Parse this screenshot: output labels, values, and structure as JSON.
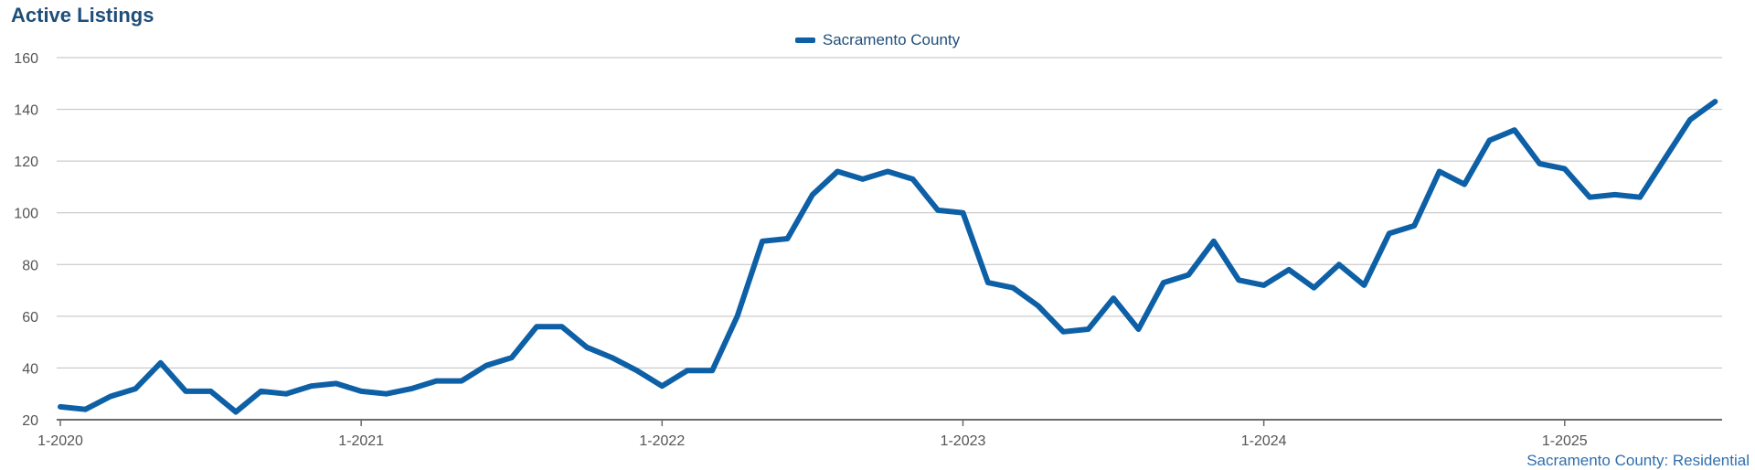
{
  "colors": {
    "series": "#0d5fa6",
    "title": "#1f4e79",
    "grid": "#bfbfbf",
    "axis": "#6b6b6b"
  },
  "chart_data": {
    "type": "line",
    "title": "Active Listings",
    "legend": "top-center",
    "grid": true,
    "ylim": [
      20,
      160
    ],
    "yticks": [
      20,
      40,
      60,
      80,
      100,
      120,
      140,
      160
    ],
    "xticks": [
      "1-2020",
      "1-2021",
      "1-2022",
      "1-2023",
      "1-2024",
      "1-2025"
    ],
    "x": [
      "2020-01",
      "2020-02",
      "2020-03",
      "2020-04",
      "2020-05",
      "2020-06",
      "2020-07",
      "2020-08",
      "2020-09",
      "2020-10",
      "2020-11",
      "2020-12",
      "2021-01",
      "2021-02",
      "2021-03",
      "2021-04",
      "2021-05",
      "2021-06",
      "2021-07",
      "2021-08",
      "2021-09",
      "2021-10",
      "2021-11",
      "2021-12",
      "2022-01",
      "2022-02",
      "2022-03",
      "2022-04",
      "2022-05",
      "2022-06",
      "2022-07",
      "2022-08",
      "2022-09",
      "2022-10",
      "2022-11",
      "2022-12",
      "2023-01",
      "2023-02",
      "2023-03",
      "2023-04",
      "2023-05",
      "2023-06",
      "2023-07",
      "2023-08",
      "2023-09",
      "2023-10",
      "2023-11",
      "2023-12",
      "2024-01",
      "2024-02",
      "2024-03",
      "2024-04",
      "2024-05",
      "2024-06",
      "2024-07",
      "2024-08",
      "2024-09",
      "2024-10",
      "2024-11",
      "2024-12",
      "2025-01",
      "2025-02",
      "2025-03",
      "2025-04",
      "2025-05",
      "2025-06",
      "2025-07"
    ],
    "series": [
      {
        "name": "Sacramento County",
        "values": [
          25,
          24,
          29,
          32,
          42,
          31,
          31,
          23,
          31,
          30,
          33,
          34,
          31,
          30,
          32,
          35,
          35,
          41,
          44,
          56,
          56,
          48,
          44,
          39,
          33,
          39,
          39,
          60,
          89,
          90,
          107,
          116,
          113,
          116,
          113,
          101,
          100,
          73,
          71,
          64,
          54,
          55,
          67,
          55,
          73,
          76,
          89,
          74,
          72,
          78,
          71,
          80,
          72,
          92,
          95,
          116,
          111,
          128,
          132,
          119,
          117,
          106,
          107,
          106,
          121,
          136,
          143
        ]
      }
    ],
    "source_note": "Sacramento County: Residential"
  }
}
